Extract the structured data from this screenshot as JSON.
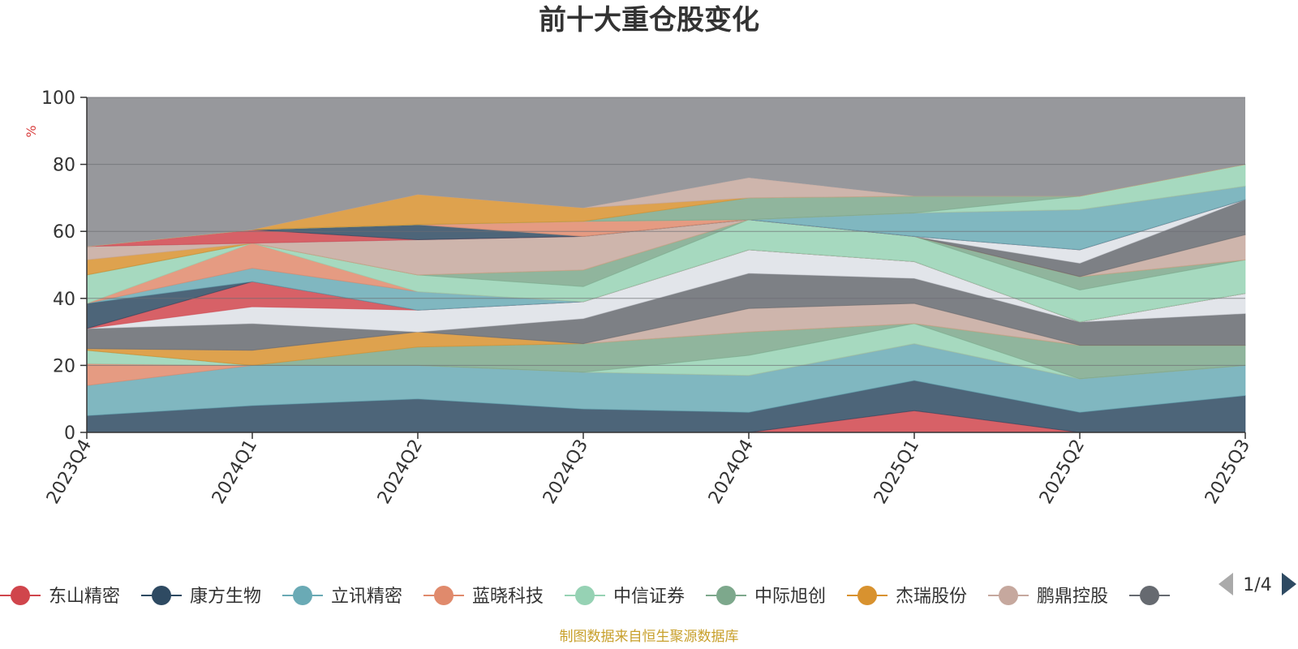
{
  "colors": {
    "remainder": "#97989c",
    "grid": "#6c6e73",
    "axis": "#333333",
    "title": "#333333",
    "source": "#c8a02c",
    "unit": "#d94040",
    "pager_active": "#2e4a62",
    "pager_inactive": "#aaaaaa"
  },
  "pager": {
    "label": "1/4"
  },
  "source_note": "制图数据来自恒生聚源数据库",
  "chart_data": {
    "type": "area",
    "stacked": true,
    "title": "前十大重仓股变化",
    "xlabel": "",
    "ylabel": "%",
    "ylim": [
      0,
      100
    ],
    "yticks": [
      0,
      20,
      40,
      60,
      80,
      100
    ],
    "grid": true,
    "legend_position": "bottom",
    "categories": [
      "2023Q4",
      "2024Q1",
      "2024Q2",
      "2024Q3",
      "2024Q4",
      "2025Q1",
      "2025Q2",
      "2025Q3"
    ],
    "series": [
      {
        "name": "东山精密",
        "color": "#d0454c",
        "legend": true,
        "values": [
          0,
          0,
          0,
          0,
          0,
          6.5,
          0,
          0
        ]
      },
      {
        "name": "康方生物",
        "color": "#2e4a62",
        "legend": true,
        "values": [
          5,
          8,
          10,
          7,
          6,
          9,
          6,
          11
        ]
      },
      {
        "name": "立讯精密",
        "color": "#6aaab5",
        "legend": true,
        "values": [
          9,
          12,
          10,
          11,
          11,
          11,
          10,
          9
        ]
      },
      {
        "name": "蓝晓科技",
        "color": "#e08a6c",
        "legend": true,
        "values": [
          6.5,
          0,
          0,
          0,
          0,
          0,
          0,
          0
        ]
      },
      {
        "name": "中信证券",
        "color": "#96d2b4",
        "legend": true,
        "values": [
          4,
          0,
          0,
          0,
          6,
          6,
          0,
          0
        ]
      },
      {
        "name": "中际旭创",
        "color": "#7da88c",
        "legend": true,
        "values": [
          0,
          0,
          5.5,
          8.5,
          7,
          0,
          10,
          6
        ]
      },
      {
        "name": "杰瑞股份",
        "color": "#d8922f",
        "legend": true,
        "values": [
          0.5,
          4.5,
          4.5,
          0,
          0,
          0,
          0,
          0
        ]
      },
      {
        "name": "鹏鼎控股",
        "color": "#c6a89e",
        "legend": true,
        "values": [
          0,
          0,
          0,
          0,
          7,
          6,
          0,
          0
        ]
      },
      {
        "name": "",
        "color": "#666a70",
        "legend": true,
        "values": [
          6,
          8,
          0,
          7.5,
          10.5,
          7.5,
          7,
          9.5
        ]
      },
      {
        "name": "",
        "color": "#dde0e6",
        "legend": false,
        "values": [
          0,
          5,
          6.5,
          5,
          7,
          5,
          0,
          6
        ]
      },
      {
        "name": "",
        "color": "#d0454c",
        "legend": false,
        "values": [
          0,
          7.5,
          0,
          0,
          0,
          0,
          0,
          0
        ]
      },
      {
        "name": "",
        "color": "#2e4a62",
        "legend": false,
        "values": [
          7.5,
          0,
          0,
          0,
          0,
          0,
          0,
          0
        ]
      },
      {
        "name": "",
        "color": "#6aaab5",
        "legend": false,
        "values": [
          0,
          4,
          5.5,
          0,
          0,
          0,
          0,
          0
        ]
      },
      {
        "name": "",
        "color": "#e08a6c",
        "legend": false,
        "values": [
          0,
          7.5,
          0,
          0,
          0,
          0,
          0,
          0
        ]
      },
      {
        "name": "",
        "color": "#96d2b4",
        "legend": false,
        "values": [
          8.5,
          0,
          5,
          4.5,
          9,
          7.5,
          9.5,
          10
        ]
      },
      {
        "name": "",
        "color": "#7da88c",
        "legend": false,
        "values": [
          0,
          0,
          0,
          5,
          0,
          0,
          4,
          0
        ]
      },
      {
        "name": "",
        "color": "#d8922f",
        "legend": false,
        "values": [
          4.5,
          0,
          0,
          0,
          0,
          0,
          0,
          0
        ]
      },
      {
        "name": "",
        "color": "#c6a89e",
        "legend": false,
        "values": [
          4,
          0,
          10.5,
          10,
          0,
          0,
          0,
          7.5
        ]
      },
      {
        "name": "",
        "color": "#666a70",
        "legend": false,
        "values": [
          0,
          0,
          0,
          0,
          0,
          0,
          4,
          10.5
        ]
      },
      {
        "name": "",
        "color": "#dde0e6",
        "legend": false,
        "values": [
          0,
          0,
          0,
          0,
          0,
          0,
          4,
          0
        ]
      },
      {
        "name": "",
        "color": "#d0454c",
        "legend": false,
        "values": [
          0,
          4,
          0,
          0,
          0,
          0,
          0,
          0
        ]
      },
      {
        "name": "",
        "color": "#2e4a62",
        "legend": false,
        "values": [
          0,
          0,
          4.5,
          0,
          0,
          0,
          0,
          0
        ]
      },
      {
        "name": "",
        "color": "#6aaab5",
        "legend": false,
        "values": [
          0,
          0,
          0,
          0,
          0,
          7,
          12,
          4
        ]
      },
      {
        "name": "",
        "color": "#e08a6c",
        "legend": false,
        "values": [
          0,
          0,
          0,
          4.5,
          0,
          0,
          0,
          0
        ]
      },
      {
        "name": "",
        "color": "#96d2b4",
        "legend": false,
        "values": [
          0,
          0,
          0,
          0,
          0,
          0,
          4,
          6.5
        ]
      },
      {
        "name": "",
        "color": "#7da88c",
        "legend": false,
        "values": [
          0,
          0,
          0,
          0,
          6.5,
          5,
          0,
          0
        ]
      },
      {
        "name": "",
        "color": "#d8922f",
        "legend": false,
        "values": [
          0,
          0,
          9,
          4,
          0,
          0,
          0,
          0
        ]
      },
      {
        "name": "",
        "color": "#c6a89e",
        "legend": false,
        "values": [
          0,
          0,
          0,
          0,
          6,
          0,
          0,
          0
        ]
      }
    ],
    "remainder_to": 100
  }
}
